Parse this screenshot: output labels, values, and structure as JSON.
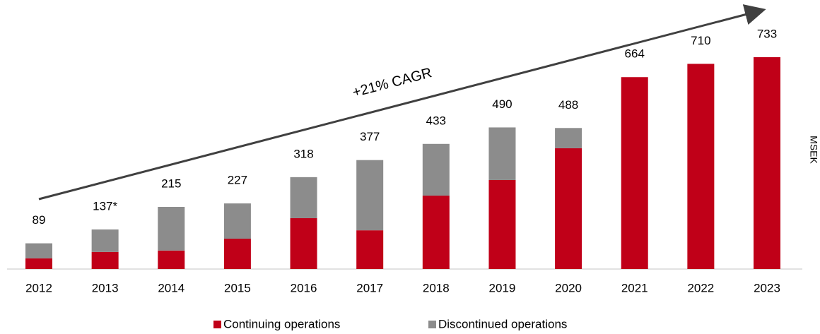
{
  "chart_data": {
    "type": "bar",
    "stacked": true,
    "annotation": "+21% CAGR",
    "y_axis_label": "MSEK",
    "categories": [
      "2012",
      "2013",
      "2014",
      "2015",
      "2016",
      "2017",
      "2018",
      "2019",
      "2020",
      "2021",
      "2022",
      "2023"
    ],
    "series": [
      {
        "name": "Continuing operations",
        "color": "#c00018",
        "values": [
          37,
          59,
          64,
          105,
          176,
          134,
          254,
          308,
          418,
          664,
          710,
          733
        ]
      },
      {
        "name": "Discontinued operations",
        "color": "#8c8c8c",
        "values": [
          52,
          78,
          151,
          122,
          142,
          243,
          179,
          182,
          70,
          0,
          0,
          0
        ]
      }
    ],
    "value_labels": [
      "89",
      "137*",
      "215",
      "227",
      "318",
      "377",
      "433",
      "490",
      "488",
      "664",
      "710",
      "733"
    ]
  }
}
